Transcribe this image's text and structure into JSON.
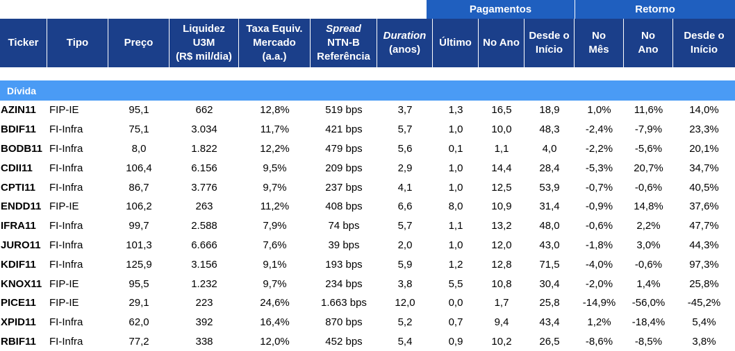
{
  "groups": {
    "pagamentos": "Pagamentos",
    "retorno": "Retorno"
  },
  "headers": {
    "ticker": [
      "Ticker"
    ],
    "tipo": [
      "Tipo"
    ],
    "preco": [
      "Preço"
    ],
    "liquidez": [
      "Liquidez",
      "U3M",
      "(R$ mil/dia)"
    ],
    "taxa": [
      "Taxa Equiv.",
      "Mercado",
      "(a.a.)"
    ],
    "spread": [
      "Spread",
      "NTN-B",
      "Referência"
    ],
    "duration": [
      "Duration",
      "(anos)"
    ],
    "ultimo": [
      "Último"
    ],
    "no_ano_pag": [
      "No Ano"
    ],
    "desde_inicio_pag": [
      "Desde o",
      "Início"
    ],
    "no_mes": [
      "No",
      "Mês"
    ],
    "no_ano_ret": [
      "No",
      "Ano"
    ],
    "desde_inicio_ret": [
      "Desde o",
      "Início"
    ]
  },
  "section": "Dívida",
  "rows": [
    [
      "AZIN11",
      "FIP-IE",
      "95,1",
      "662",
      "12,8%",
      "519 bps",
      "3,7",
      "1,3",
      "16,5",
      "18,9",
      "1,0%",
      "11,6%",
      "14,0%"
    ],
    [
      "BDIF11",
      "FI-Infra",
      "75,1",
      "3.034",
      "11,7%",
      "421 bps",
      "5,7",
      "1,0",
      "10,0",
      "48,3",
      "-2,4%",
      "-7,9%",
      "23,3%"
    ],
    [
      "BODB11",
      "FI-Infra",
      "8,0",
      "1.822",
      "12,2%",
      "479 bps",
      "5,6",
      "0,1",
      "1,1",
      "4,0",
      "-2,2%",
      "-5,6%",
      "20,1%"
    ],
    [
      "CDII11",
      "FI-Infra",
      "106,4",
      "6.156",
      "9,5%",
      "209 bps",
      "2,9",
      "1,0",
      "14,4",
      "28,4",
      "-5,3%",
      "20,7%",
      "34,7%"
    ],
    [
      "CPTI11",
      "FI-Infra",
      "86,7",
      "3.776",
      "9,7%",
      "237 bps",
      "4,1",
      "1,0",
      "12,5",
      "53,9",
      "-0,7%",
      "-0,6%",
      "40,5%"
    ],
    [
      "ENDD11",
      "FIP-IE",
      "106,2",
      "263",
      "11,2%",
      "408 bps",
      "6,6",
      "8,0",
      "10,9",
      "31,4",
      "-0,9%",
      "14,8%",
      "37,6%"
    ],
    [
      "IFRA11",
      "FI-Infra",
      "99,7",
      "2.588",
      "7,9%",
      "74 bps",
      "5,7",
      "1,1",
      "13,2",
      "48,0",
      "-0,6%",
      "2,2%",
      "47,7%"
    ],
    [
      "JURO11",
      "FI-Infra",
      "101,3",
      "6.666",
      "7,6%",
      "39 bps",
      "2,0",
      "1,0",
      "12,0",
      "43,0",
      "-1,8%",
      "3,0%",
      "44,3%"
    ],
    [
      "KDIF11",
      "FI-Infra",
      "125,9",
      "3.156",
      "9,1%",
      "193 bps",
      "5,9",
      "1,2",
      "12,8",
      "71,5",
      "-4,0%",
      "-0,6%",
      "97,3%"
    ],
    [
      "KNOX11",
      "FIP-IE",
      "95,5",
      "1.232",
      "9,7%",
      "234 bps",
      "3,8",
      "5,5",
      "10,8",
      "30,4",
      "-2,0%",
      "1,4%",
      "25,8%"
    ],
    [
      "PICE11",
      "FIP-IE",
      "29,1",
      "223",
      "24,6%",
      "1.663 bps",
      "12,0",
      "0,0",
      "1,7",
      "25,8",
      "-14,9%",
      "-56,0%",
      "-45,2%"
    ],
    [
      "XPID11",
      "FI-Infra",
      "62,0",
      "392",
      "16,4%",
      "870 bps",
      "5,2",
      "0,7",
      "9,4",
      "43,4",
      "1,2%",
      "-18,4%",
      "5,4%"
    ],
    [
      "RBIF11",
      "FI-Infra",
      "77,2",
      "338",
      "12,0%",
      "452 bps",
      "5,4",
      "0,9",
      "10,2",
      "26,5",
      "-8,6%",
      "-8,5%",
      "3,8%"
    ]
  ]
}
